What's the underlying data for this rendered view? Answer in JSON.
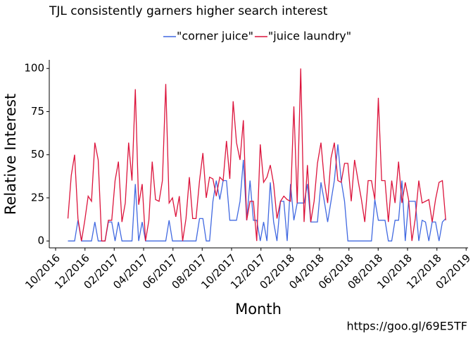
{
  "chart_data": {
    "type": "line",
    "title": "TJL consistently garners higher search interest",
    "title_color": "#d7263d",
    "xlabel": "Month",
    "ylabel": "Relative Interest",
    "caption": "https://goo.gl/69E5TF",
    "legend": "top",
    "grid": false,
    "x": [
      2016.82,
      2016.839,
      2016.858,
      2016.877,
      2016.897,
      2016.916,
      2016.935,
      2016.954,
      2016.973,
      2016.992,
      2017.012,
      2017.031,
      2017.05,
      2017.069,
      2017.088,
      2017.107,
      2017.127,
      2017.146,
      2017.165,
      2017.184,
      2017.203,
      2017.222,
      2017.242,
      2017.261,
      2017.28,
      2017.299,
      2017.318,
      2017.338,
      2017.357,
      2017.376,
      2017.395,
      2017.414,
      2017.433,
      2017.453,
      2017.472,
      2017.491,
      2017.51,
      2017.529,
      2017.548,
      2017.568,
      2017.587,
      2017.606,
      2017.625,
      2017.644,
      2017.663,
      2017.683,
      2017.702,
      2017.721,
      2017.74,
      2017.759,
      2017.778,
      2017.798,
      2017.817,
      2017.836,
      2017.855,
      2017.874,
      2017.893,
      2017.913,
      2017.932,
      2017.951,
      2017.97,
      2017.989,
      2018.008,
      2018.028,
      2018.047,
      2018.066,
      2018.085,
      2018.104,
      2018.123,
      2018.143,
      2018.162,
      2018.181,
      2018.2,
      2018.219,
      2018.238,
      2018.258,
      2018.277,
      2018.296,
      2018.315,
      2018.334,
      2018.354,
      2018.373,
      2018.392,
      2018.411,
      2018.43,
      2018.449,
      2018.469,
      2018.488,
      2018.507,
      2018.526,
      2018.545,
      2018.564,
      2018.584,
      2018.603,
      2018.622,
      2018.641,
      2018.66,
      2018.679,
      2018.699,
      2018.718,
      2018.737,
      2018.756,
      2018.775,
      2018.794,
      2018.814,
      2018.833,
      2018.852,
      2018.871,
      2018.89,
      2018.909,
      2018.929,
      2018.948,
      2018.967
    ],
    "series": [
      {
        "name": "\"corner juice\"",
        "color": "#4169e1",
        "values": [
          0,
          0,
          0,
          12,
          0,
          0,
          0,
          0,
          11,
          0,
          0,
          0,
          11,
          11,
          0,
          11,
          0,
          0,
          0,
          0,
          33,
          0,
          11,
          0,
          0,
          0,
          0,
          0,
          0,
          0,
          12,
          0,
          0,
          0,
          0,
          0,
          0,
          0,
          0,
          13,
          13,
          0,
          0,
          23,
          35,
          24,
          35,
          35,
          12,
          12,
          12,
          23,
          47,
          12,
          35,
          12,
          12,
          0,
          11,
          0,
          34,
          11,
          0,
          23,
          23,
          0,
          33,
          12,
          22,
          22,
          22,
          33,
          11,
          11,
          11,
          34,
          23,
          11,
          23,
          35,
          56,
          35,
          23,
          0,
          0,
          0,
          0,
          0,
          0,
          0,
          0,
          24,
          12,
          12,
          12,
          0,
          0,
          12,
          12,
          35,
          0,
          23,
          23,
          23,
          0,
          12,
          11,
          0,
          11,
          11,
          0,
          11,
          13
        ]
      },
      {
        "name": "\"juice laundry\"",
        "color": "#dc143c",
        "values": [
          13,
          38,
          50,
          13,
          0,
          12,
          26,
          23,
          57,
          47,
          0,
          0,
          12,
          12,
          35,
          46,
          11,
          22,
          57,
          35,
          88,
          21,
          33,
          0,
          12,
          46,
          24,
          23,
          35,
          91,
          22,
          25,
          14,
          26,
          0,
          13,
          37,
          13,
          13,
          35,
          51,
          25,
          37,
          36,
          26,
          37,
          35,
          58,
          36,
          81,
          57,
          47,
          70,
          12,
          23,
          23,
          0,
          56,
          34,
          37,
          44,
          33,
          13,
          23,
          26,
          24,
          23,
          78,
          22,
          100,
          11,
          44,
          11,
          23,
          45,
          57,
          35,
          22,
          48,
          57,
          35,
          34,
          45,
          45,
          23,
          47,
          35,
          24,
          11,
          35,
          35,
          24,
          83,
          35,
          35,
          11,
          35,
          22,
          46,
          22,
          34,
          24,
          0,
          13,
          35,
          22,
          23,
          24,
          11,
          24,
          34,
          35,
          12
        ]
      }
    ],
    "xlim": [
      2016.714,
      2019.094
    ],
    "xticks": [
      {
        "value": 2016.75,
        "label": "10/2016"
      },
      {
        "value": 2016.917,
        "label": "12/2016"
      },
      {
        "value": 2017.083,
        "label": "02/2017"
      },
      {
        "value": 2017.25,
        "label": "04/2017"
      },
      {
        "value": 2017.417,
        "label": "06/2017"
      },
      {
        "value": 2017.583,
        "label": "08/2017"
      },
      {
        "value": 2017.75,
        "label": "10/2017"
      },
      {
        "value": 2017.917,
        "label": "12/2017"
      },
      {
        "value": 2018.083,
        "label": "02/2018"
      },
      {
        "value": 2018.25,
        "label": "04/2018"
      },
      {
        "value": 2018.417,
        "label": "06/2018"
      },
      {
        "value": 2018.583,
        "label": "08/2018"
      },
      {
        "value": 2018.75,
        "label": "10/2018"
      },
      {
        "value": 2018.917,
        "label": "12/2018"
      },
      {
        "value": 2019.083,
        "label": "02/2019"
      }
    ],
    "ylim": [
      -4,
      105
    ],
    "yticks": [
      0,
      25,
      50,
      75,
      100
    ]
  }
}
